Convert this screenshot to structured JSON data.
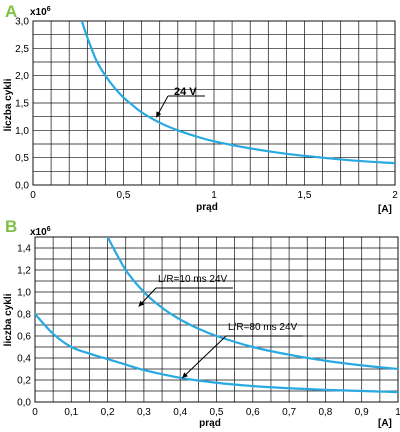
{
  "chart_data": [
    {
      "type": "line",
      "panel_label": "A",
      "multiplier_base": "x10",
      "multiplier_exp": "6",
      "xlabel": "prąd",
      "xunit": "[A]",
      "ylabel": "liczba cykli",
      "xlim": [
        0,
        2
      ],
      "ylim": [
        0,
        3.0
      ],
      "xticks": [
        0,
        0.5,
        1,
        1.5,
        2
      ],
      "xtick_labels": [
        "0",
        "0,5",
        "1",
        "1,5",
        "2"
      ],
      "yticks": [
        0,
        0.5,
        1.0,
        1.5,
        2.0,
        2.5,
        3.0
      ],
      "ytick_labels": [
        "0,0",
        "0,5",
        "1,0",
        "1,5",
        "2,0",
        "2,5",
        "3,0"
      ],
      "grid": {
        "x_step": 0.1,
        "y_step": 0.25
      },
      "series": [
        {
          "label": "24 V",
          "color": "#29a9e1",
          "x": [
            0.27,
            0.3,
            0.35,
            0.4,
            0.45,
            0.5,
            0.55,
            0.6,
            0.7,
            0.8,
            0.9,
            1.0,
            1.2,
            1.4,
            1.6,
            1.8,
            2.0
          ],
          "y": [
            3.0,
            2.7,
            2.28,
            2.0,
            1.78,
            1.6,
            1.46,
            1.33,
            1.14,
            1.0,
            0.89,
            0.8,
            0.67,
            0.57,
            0.5,
            0.44,
            0.4
          ],
          "annotation_at": [
            0.67,
            1.2
          ]
        }
      ]
    },
    {
      "type": "line",
      "panel_label": "B",
      "multiplier_base": "x10",
      "multiplier_exp": "6",
      "xlabel": "prąd",
      "xunit": "[A]",
      "ylabel": "liczba cykli",
      "xlim": [
        0,
        1
      ],
      "ylim": [
        0,
        1.5
      ],
      "xticks": [
        0,
        0.1,
        0.2,
        0.3,
        0.4,
        0.5,
        0.6,
        0.7,
        0.8,
        0.9,
        1
      ],
      "xtick_labels": [
        "0",
        "0,1",
        "0,2",
        "0,3",
        "0,4",
        "0,5",
        "0,6",
        "0,7",
        "0,8",
        "0,9",
        "1"
      ],
      "yticks": [
        0,
        0.2,
        0.4,
        0.6,
        0.8,
        1.0,
        1.2,
        1.4
      ],
      "ytick_labels": [
        "0,0",
        "0,2",
        "0,4",
        "0,6",
        "0,8",
        "1,0",
        "1,2",
        "1,4"
      ],
      "grid": {
        "x_step": 0.05,
        "y_step": 0.1
      },
      "series": [
        {
          "label": "L/R=10 ms 24V",
          "color": "#29a9e1",
          "x": [
            0.2,
            0.25,
            0.3,
            0.35,
            0.4,
            0.45,
            0.5,
            0.6,
            0.7,
            0.8,
            0.9,
            1.0
          ],
          "y": [
            1.5,
            1.2,
            1.0,
            0.857,
            0.75,
            0.667,
            0.6,
            0.5,
            0.43,
            0.375,
            0.333,
            0.3
          ],
          "annotation_at": [
            0.28,
            0.85
          ]
        },
        {
          "label": "L/R=80 ms 24V",
          "color": "#29a9e1",
          "x": [
            0.0,
            0.05,
            0.1,
            0.15,
            0.2,
            0.25,
            0.3,
            0.4,
            0.5,
            0.6,
            0.7,
            0.8,
            0.9,
            1.0
          ],
          "y": [
            0.8,
            0.62,
            0.5,
            0.44,
            0.39,
            0.34,
            0.29,
            0.22,
            0.175,
            0.145,
            0.125,
            0.11,
            0.1,
            0.09
          ],
          "annotation_at": [
            0.4,
            0.2
          ]
        }
      ]
    }
  ]
}
